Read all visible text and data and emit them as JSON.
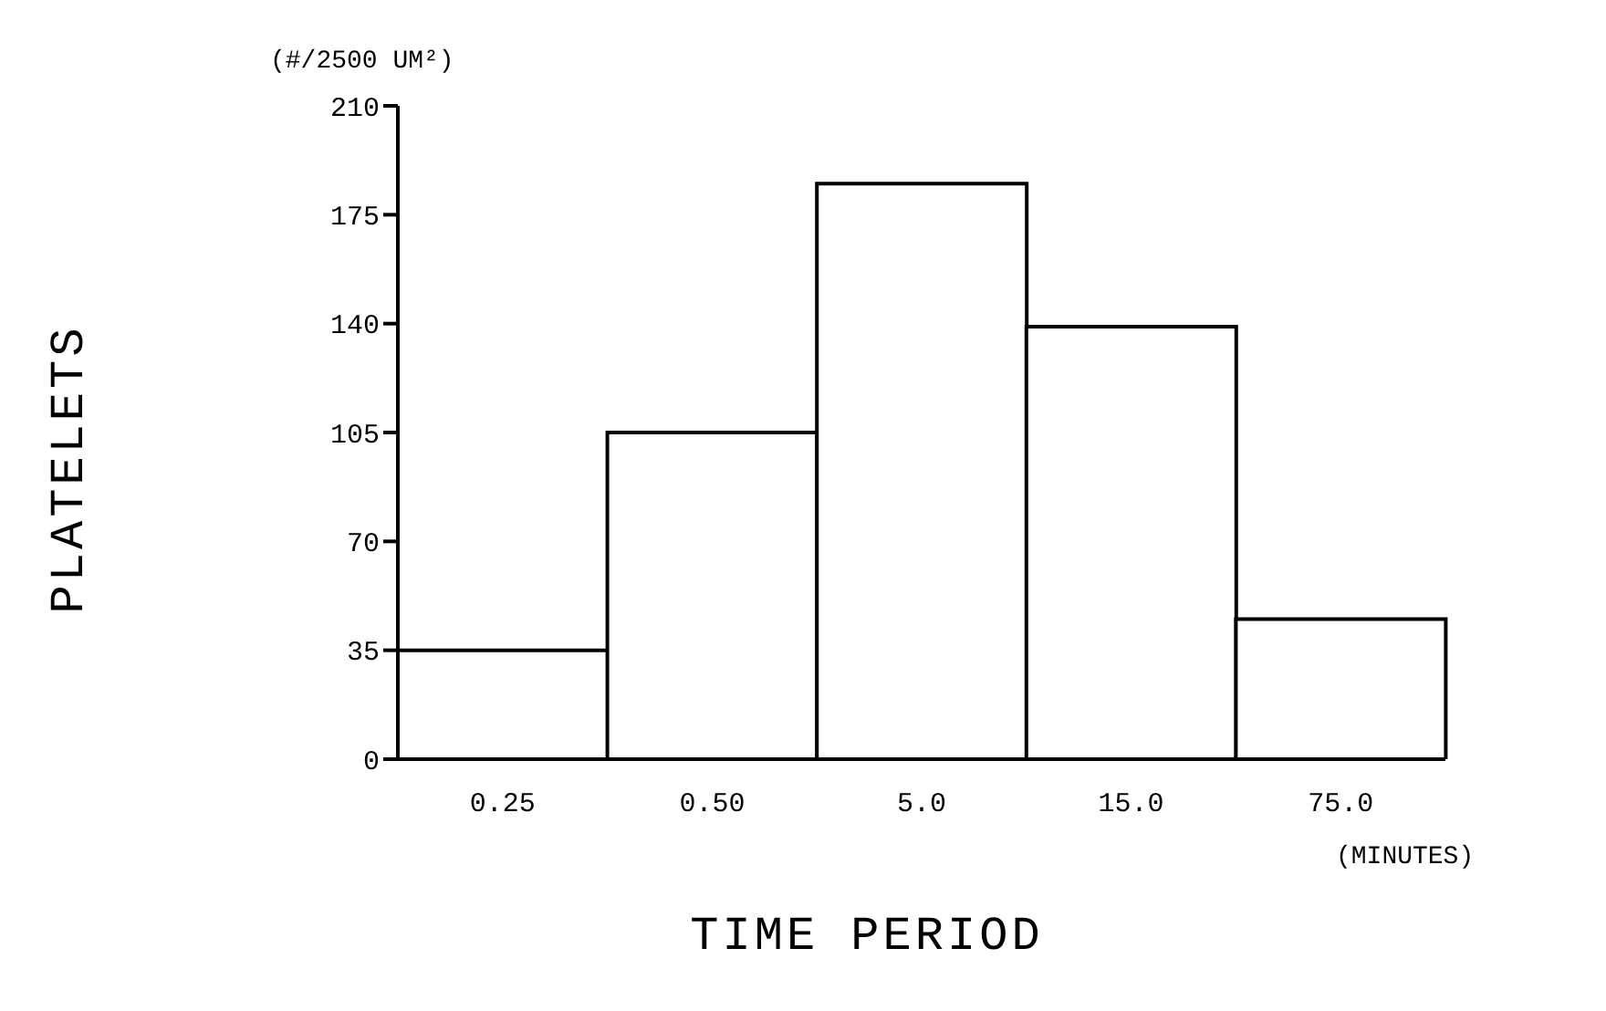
{
  "chart_data": {
    "type": "bar",
    "ylabel": "PLATELETS",
    "xlabel": "TIME PERIOD",
    "categories": [
      "0.25",
      "0.50",
      "5.0",
      "15.0",
      "75.0"
    ],
    "values": [
      35,
      105,
      185,
      139,
      45
    ],
    "color": "#ffffff",
    "ylim": [
      0,
      210
    ],
    "yticks": [
      0,
      35,
      70,
      105,
      140,
      175,
      210
    ],
    "annotations": [
      "(#/2500 UM²)",
      "(MINUTES)"
    ],
    "grid": false,
    "legend": false
  }
}
